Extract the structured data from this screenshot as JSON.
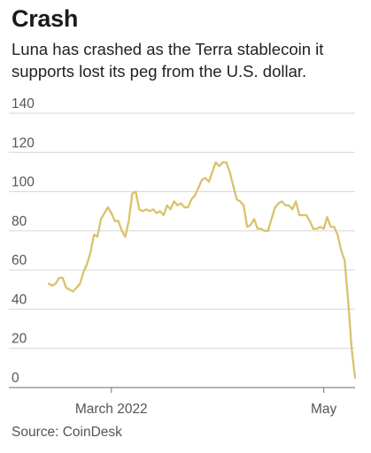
{
  "header": {
    "title": "Crash",
    "subtitle": "Luna has crashed as the Terra stablecoin it supports lost its peg from the U.S. dollar."
  },
  "footer": {
    "source": "Source: CoinDesk"
  },
  "chart_data": {
    "type": "line",
    "title": "Crash",
    "subtitle": "Luna has crashed as the Terra stablecoin it supports lost its peg from the U.S. dollar.",
    "xlabel": "",
    "ylabel": "",
    "ylim": [
      0,
      140
    ],
    "yticks": [
      0,
      20,
      40,
      60,
      80,
      100,
      120,
      140
    ],
    "xticks": [
      {
        "label": "March 2022",
        "index": 18
      },
      {
        "label": "May",
        "index": 79
      }
    ],
    "grid": true,
    "line_color": "#d9c26a",
    "series": [
      {
        "name": "",
        "values": [
          53,
          52,
          53,
          56,
          56,
          51,
          50,
          49,
          51,
          53,
          59,
          63,
          69,
          78,
          77,
          86,
          89,
          92,
          89,
          85,
          85,
          80,
          77,
          85,
          99,
          100,
          91,
          90,
          91,
          90,
          91,
          89,
          90,
          88,
          93,
          91,
          95,
          93,
          94,
          92,
          92,
          96,
          98,
          102,
          106,
          107,
          105,
          110,
          115,
          113,
          115,
          115,
          110,
          103,
          96,
          95,
          93,
          82,
          83,
          86,
          81,
          81,
          80,
          80,
          86,
          92,
          94,
          95,
          93,
          93,
          91,
          95,
          88,
          88,
          88,
          85,
          81,
          81,
          82,
          81,
          87,
          82,
          82,
          78,
          70,
          65,
          45,
          20,
          5
        ]
      }
    ]
  }
}
